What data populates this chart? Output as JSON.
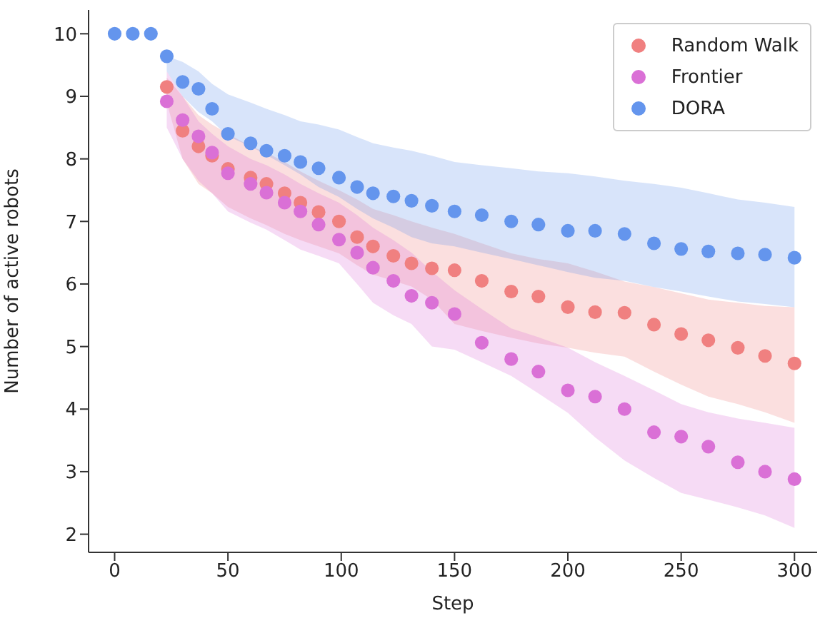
{
  "chart_data": {
    "type": "scatter",
    "xlabel": "Step",
    "ylabel": "Number of active robots",
    "x": [
      0,
      8,
      16,
      23,
      30,
      37,
      43,
      50,
      60,
      67,
      75,
      82,
      90,
      99,
      107,
      114,
      123,
      131,
      140,
      150,
      162,
      175,
      187,
      200,
      212,
      225,
      238,
      250,
      262,
      275,
      287,
      300
    ],
    "xlim": [
      -11.5,
      310
    ],
    "xticks": [
      0,
      50,
      100,
      150,
      200,
      250,
      300
    ],
    "ylim": [
      1.71,
      10.38
    ],
    "yticks": [
      2,
      3,
      4,
      5,
      6,
      7,
      8,
      9,
      10
    ],
    "grid": false,
    "legend": "top right",
    "marker": "circle",
    "series": [
      {
        "name": "Random Walk",
        "color": "#f08080",
        "values": [
          null,
          null,
          null,
          9.15,
          8.45,
          8.2,
          8.05,
          7.84,
          7.7,
          7.6,
          7.45,
          7.3,
          7.15,
          7.0,
          6.75,
          6.6,
          6.45,
          6.33,
          6.25,
          6.22,
          6.05,
          5.88,
          5.8,
          5.63,
          5.55,
          5.54,
          5.35,
          5.2,
          5.1,
          4.98,
          4.85,
          4.73
        ],
        "upper": [
          null,
          null,
          null,
          9.3,
          9.0,
          8.7,
          8.55,
          8.4,
          8.2,
          8.1,
          7.95,
          7.8,
          7.65,
          7.5,
          7.35,
          7.2,
          7.1,
          7.0,
          6.9,
          6.8,
          6.65,
          6.49,
          6.4,
          6.33,
          6.2,
          6.04,
          5.95,
          5.85,
          5.75,
          5.7,
          5.65,
          5.63
        ],
        "lower": [
          null,
          null,
          null,
          8.9,
          8.0,
          7.6,
          7.45,
          7.23,
          7.05,
          6.94,
          6.8,
          6.7,
          6.6,
          6.49,
          6.3,
          6.15,
          6.05,
          5.96,
          5.75,
          5.36,
          5.25,
          5.14,
          5.05,
          4.98,
          4.9,
          4.84,
          4.6,
          4.39,
          4.2,
          4.08,
          3.95,
          3.78
        ]
      },
      {
        "name": "Frontier",
        "color": "#da70d6",
        "values": [
          null,
          null,
          null,
          8.92,
          8.62,
          8.36,
          8.1,
          7.77,
          7.6,
          7.46,
          7.3,
          7.16,
          6.95,
          6.71,
          6.5,
          6.26,
          6.05,
          5.81,
          5.7,
          5.52,
          5.06,
          4.8,
          4.6,
          4.3,
          4.2,
          4.0,
          3.63,
          3.56,
          3.4,
          3.15,
          3.0,
          2.88
        ],
        "upper": [
          null,
          null,
          null,
          9.4,
          9.0,
          8.6,
          8.4,
          8.2,
          8.0,
          7.9,
          7.75,
          7.6,
          7.45,
          7.3,
          7.1,
          6.9,
          6.7,
          6.5,
          6.2,
          5.9,
          5.6,
          5.29,
          5.15,
          4.98,
          4.75,
          4.53,
          4.3,
          4.08,
          3.95,
          3.85,
          3.78,
          3.7
        ],
        "lower": [
          null,
          null,
          null,
          8.5,
          8.0,
          7.65,
          7.45,
          7.16,
          6.98,
          6.87,
          6.7,
          6.55,
          6.45,
          6.33,
          6.0,
          5.7,
          5.5,
          5.36,
          5.0,
          4.95,
          4.75,
          4.53,
          4.25,
          3.94,
          3.55,
          3.18,
          2.9,
          2.66,
          2.55,
          2.43,
          2.3,
          2.1
        ]
      },
      {
        "name": "DORA",
        "color": "#6495ed",
        "values": [
          10,
          10,
          10,
          9.64,
          9.23,
          9.12,
          8.8,
          8.4,
          8.25,
          8.13,
          8.05,
          7.95,
          7.85,
          7.7,
          7.55,
          7.45,
          7.4,
          7.33,
          7.25,
          7.16,
          7.1,
          7.0,
          6.95,
          6.85,
          6.85,
          6.8,
          6.65,
          6.56,
          6.52,
          6.49,
          6.47,
          6.42
        ],
        "upper": [
          null,
          null,
          null,
          9.64,
          9.55,
          9.4,
          9.2,
          9.03,
          8.9,
          8.8,
          8.7,
          8.6,
          8.55,
          8.47,
          8.35,
          8.25,
          8.18,
          8.13,
          8.05,
          7.95,
          7.9,
          7.85,
          7.8,
          7.77,
          7.72,
          7.65,
          7.6,
          7.54,
          7.45,
          7.35,
          7.3,
          7.23
        ],
        "lower": [
          null,
          null,
          null,
          9.4,
          9.0,
          8.75,
          8.6,
          8.36,
          8.2,
          8.06,
          7.9,
          7.75,
          7.55,
          7.39,
          7.2,
          7.05,
          6.9,
          6.75,
          6.65,
          6.6,
          6.5,
          6.4,
          6.3,
          6.19,
          6.1,
          6.05,
          5.95,
          5.88,
          5.8,
          5.72,
          5.68,
          5.63
        ]
      }
    ]
  }
}
